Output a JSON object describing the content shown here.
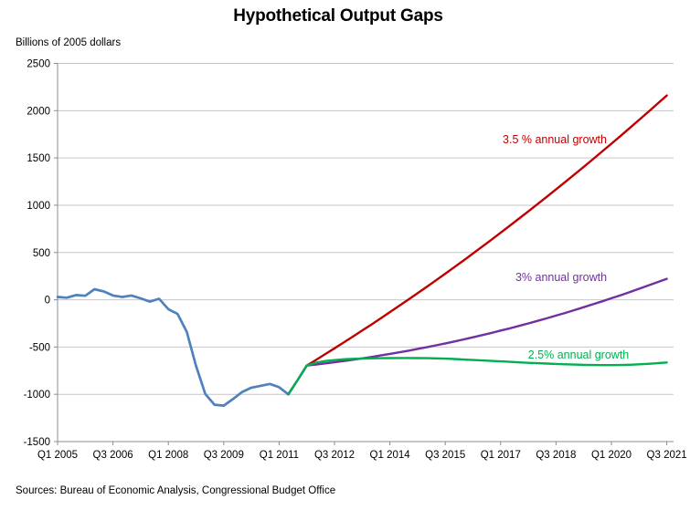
{
  "page": {
    "title": "Hypothetical Output Gaps",
    "y_axis_caption": "Billions of 2005  dollars",
    "sources": "Sources: Bureau of Economic Analysis, Congressional Budget Office"
  },
  "chart_data": {
    "type": "line",
    "title": "Hypothetical Output Gaps",
    "ylabel": "Billions of 2005 dollars",
    "xlabel": "",
    "x_unit": "quarters",
    "x_range": [
      "Q1 2005",
      "Q3 2021"
    ],
    "x_tick_labels": [
      "Q1 2005",
      "Q3 2006",
      "Q1 2008",
      "Q3 2009",
      "Q1 2011",
      "Q3 2012",
      "Q1 2014",
      "Q3 2015",
      "Q1 2017",
      "Q3 2018",
      "Q1 2020",
      "Q3 2021"
    ],
    "x_tick_indices": [
      0,
      6,
      12,
      18,
      24,
      30,
      36,
      42,
      48,
      54,
      60,
      66
    ],
    "ylim": [
      -1500,
      2500
    ],
    "y_tick_step": 500,
    "y_tick_labels": [
      "2500",
      "2000",
      "1500",
      "1000",
      "500",
      "0",
      "-500",
      "-1000",
      "-1500"
    ],
    "grid": true,
    "legend_position": "inline-annotations",
    "series": [
      {
        "name": "actual-output-gap",
        "label": null,
        "color": "#4F81BD",
        "start_index": 0,
        "values": [
          30,
          22,
          50,
          42,
          112,
          88,
          45,
          30,
          45,
          15,
          -20,
          10,
          -100,
          -150,
          -340,
          -700,
          -995,
          -1110,
          -1120,
          -1050,
          -975,
          -930,
          -910,
          -890,
          -925,
          -1000
        ]
      },
      {
        "name": "growth-3-5-percent",
        "label": "3.5 % annual  growth",
        "color": "#C00000",
        "start_index": 25,
        "values": [
          -1000,
          -850,
          -696,
          -636,
          -575,
          -514,
          -452,
          -389,
          -326,
          -262,
          -197,
          -131,
          -65,
          2,
          69,
          137,
          206,
          276,
          346,
          417,
          489,
          562,
          635,
          709,
          784,
          859,
          935,
          1012,
          1089,
          1167,
          1246,
          1326,
          1406,
          1487,
          1569,
          1651,
          1734,
          1818,
          1903,
          1988,
          2074,
          2160
        ]
      },
      {
        "name": "growth-3-percent",
        "label": "3% annual growth",
        "color": "#7030A0",
        "start_index": 25,
        "values": [
          -1000,
          -850,
          -696,
          -685,
          -673,
          -661,
          -648,
          -634,
          -620,
          -605,
          -589,
          -573,
          -556,
          -539,
          -520,
          -502,
          -482,
          -462,
          -441,
          -419,
          -397,
          -374,
          -351,
          -326,
          -302,
          -276,
          -250,
          -223,
          -196,
          -167,
          -139,
          -109,
          -79,
          -48,
          -17,
          16,
          48,
          82,
          116,
          151,
          186,
          222
        ]
      },
      {
        "name": "growth-2-5-percent",
        "label": "2.5% annual growth",
        "color": "#00B050",
        "start_index": 25,
        "values": [
          -1000,
          -850,
          -696,
          -665,
          -648,
          -638,
          -630,
          -625,
          -622,
          -620,
          -618,
          -617,
          -616,
          -616,
          -617,
          -618,
          -620,
          -623,
          -627,
          -632,
          -637,
          -642,
          -647,
          -652,
          -657,
          -662,
          -667,
          -671,
          -675,
          -679,
          -683,
          -686,
          -688,
          -690,
          -691,
          -691,
          -690,
          -687,
          -683,
          -678,
          -671,
          -663
        ]
      }
    ],
    "annotations": [
      {
        "text": "3.5 % annual  growth",
        "color": "#C00000"
      },
      {
        "text": "3% annual growth",
        "color": "#7030A0"
      },
      {
        "text": "2.5% annual growth",
        "color": "#00B050"
      }
    ]
  }
}
